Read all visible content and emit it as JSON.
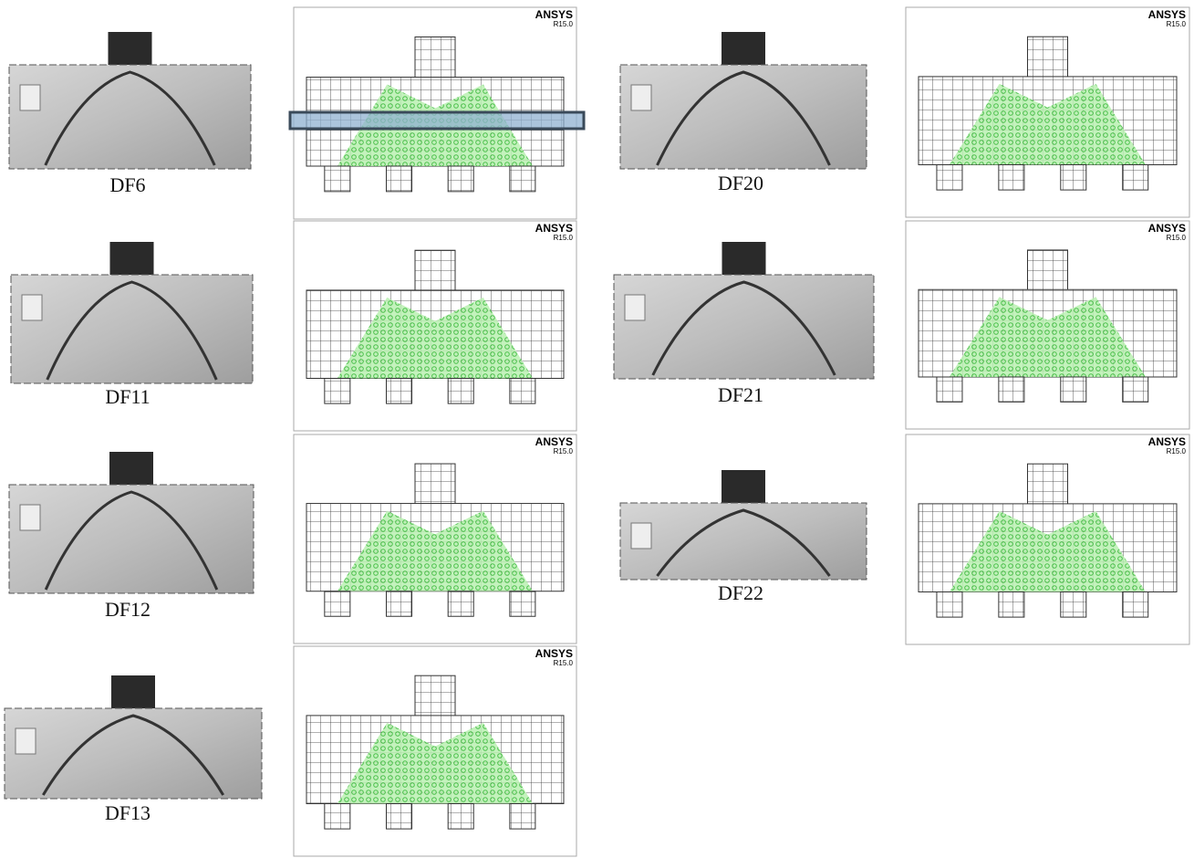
{
  "specimens": [
    {
      "label": "DF6",
      "fe_panel": {
        "brand": "ANSYS",
        "version": "R15.0"
      }
    },
    {
      "label": "DF11",
      "fe_panel": {
        "brand": "ANSYS",
        "version": "R15.0"
      }
    },
    {
      "label": "DF12",
      "fe_panel": {
        "brand": "ANSYS",
        "version": "R15.0"
      }
    },
    {
      "label": "DF13",
      "fe_panel": {
        "brand": "ANSYS",
        "version": "R15.0"
      }
    },
    {
      "label": "DF20",
      "fe_panel": {
        "brand": "ANSYS",
        "version": "R15.0"
      }
    },
    {
      "label": "DF21",
      "fe_panel": {
        "brand": "ANSYS",
        "version": "R15.0"
      }
    },
    {
      "label": "DF22",
      "fe_panel": {
        "brand": "ANSYS",
        "version": "R15.0"
      }
    }
  ]
}
